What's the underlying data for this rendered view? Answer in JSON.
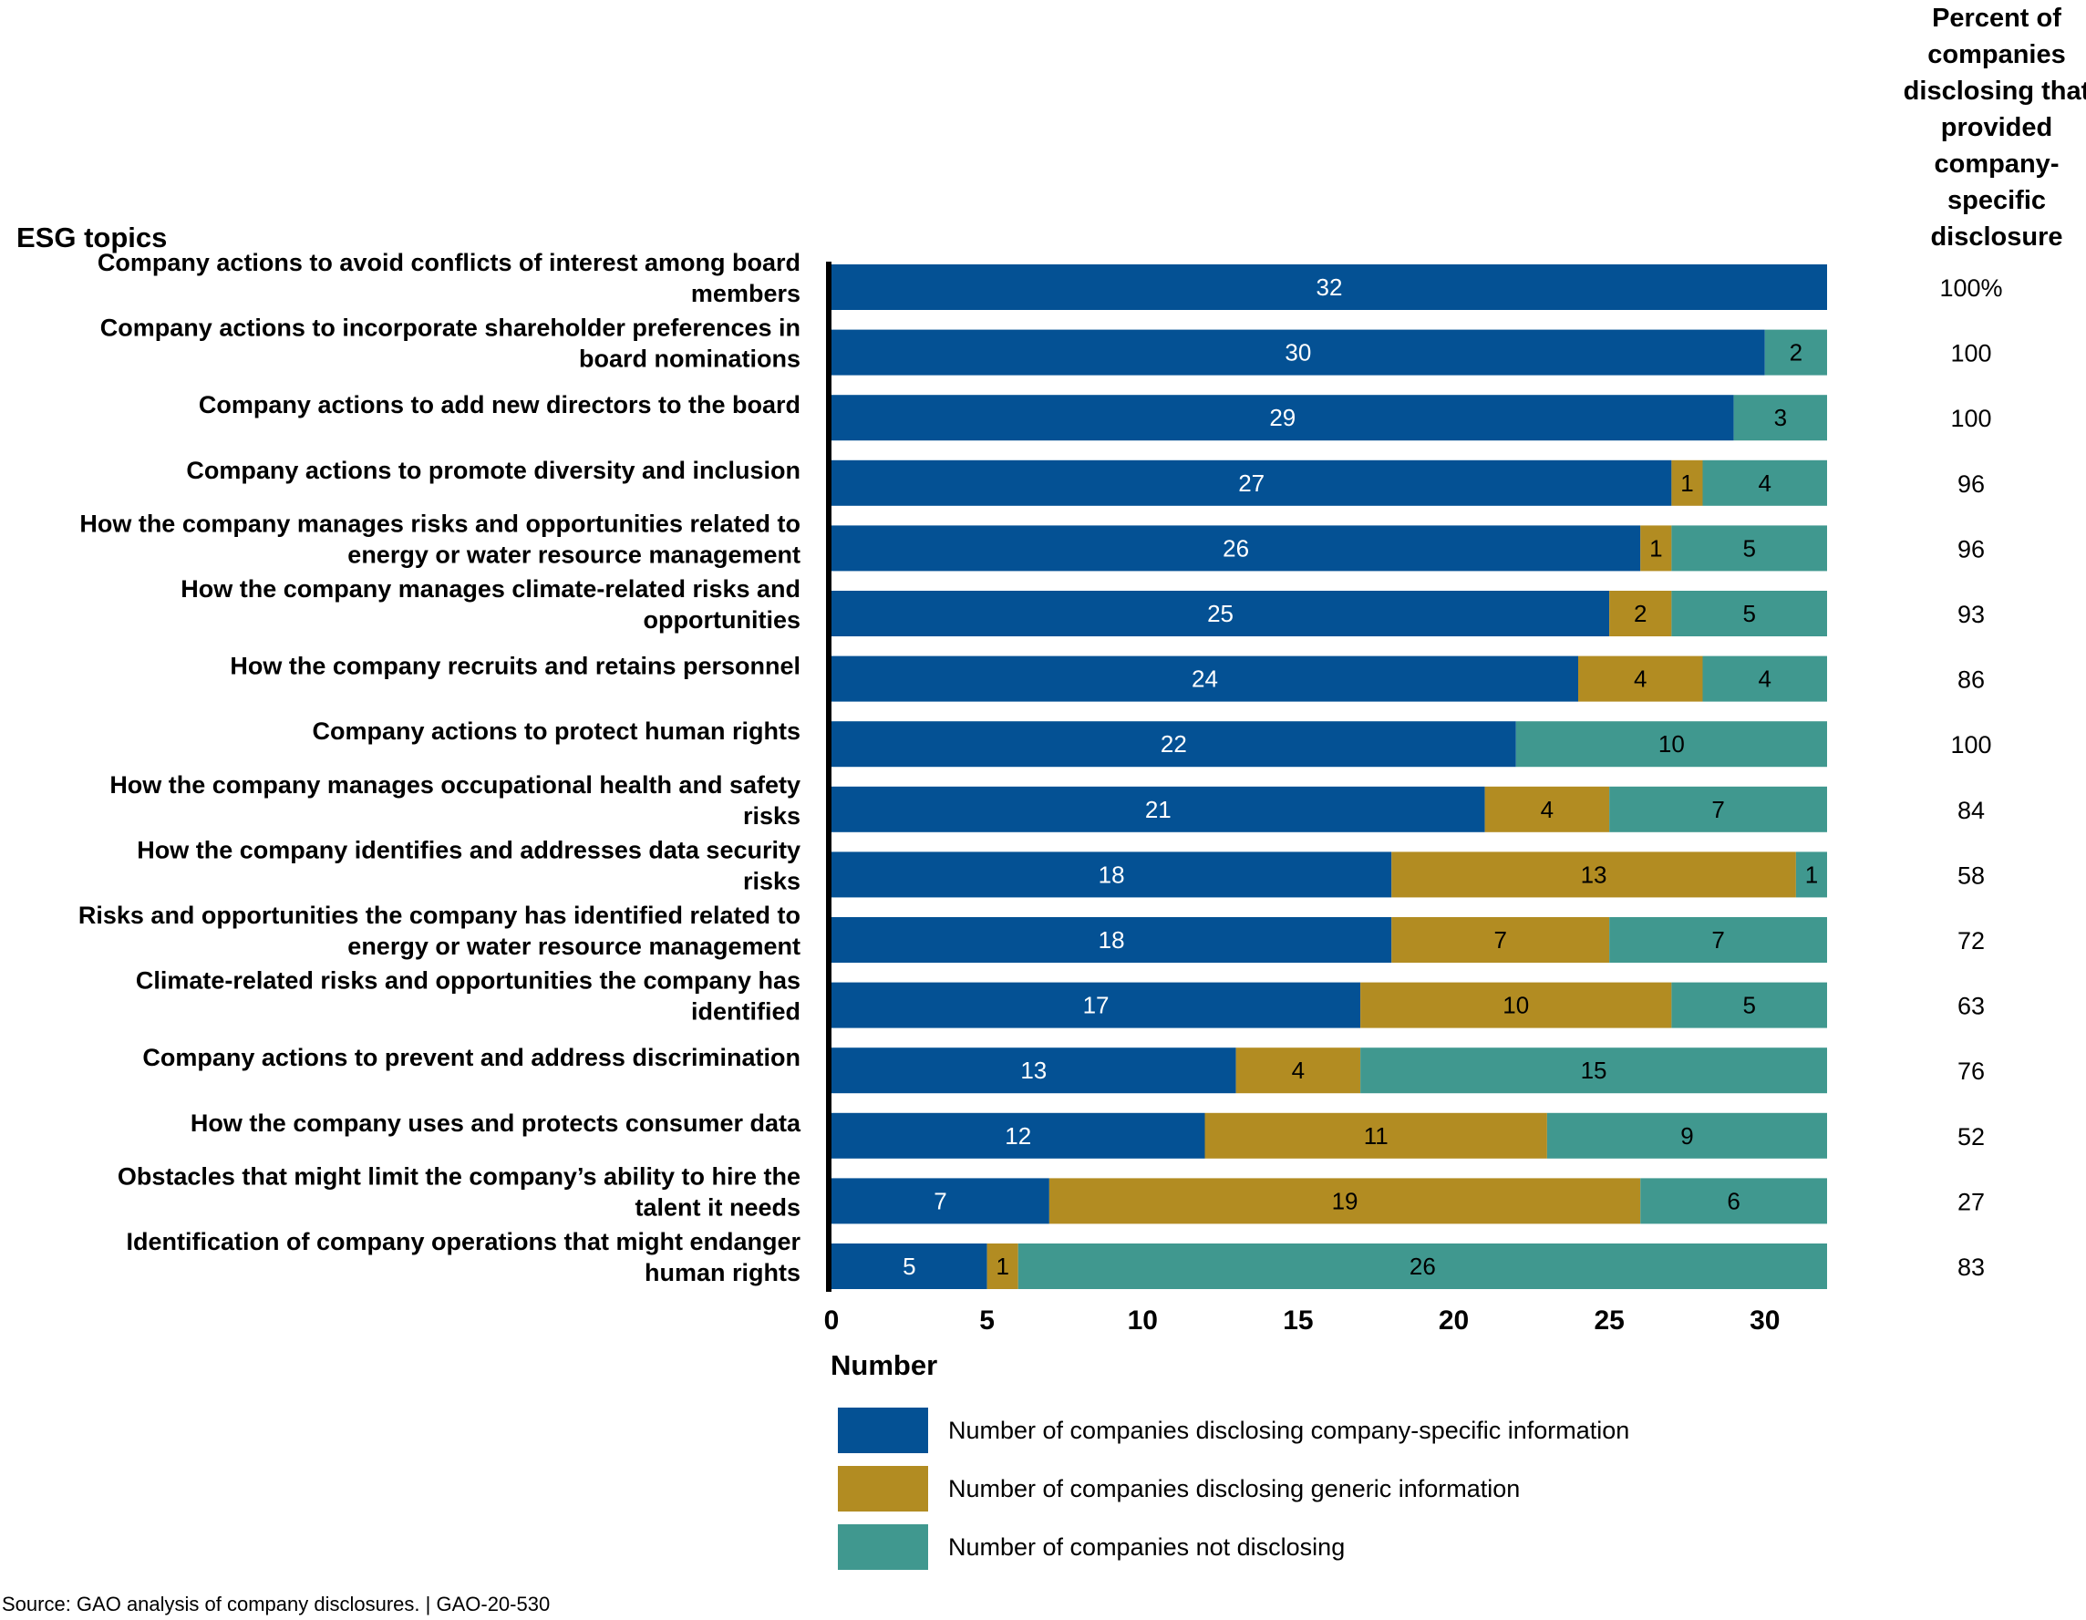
{
  "header": {
    "pct_title_lines": [
      "Percent of",
      "companies",
      "disclosing that",
      "provided",
      "company-",
      "specific",
      "disclosure"
    ]
  },
  "yaxis_title": "ESG topics",
  "xaxis_title": "Number",
  "source": "Source: GAO analysis of company disclosures.  |  GAO-20-530",
  "colors": {
    "specific": "#045194",
    "generic": "#b28c22",
    "not": "#40988f",
    "axis": "#000000"
  },
  "legend": [
    {
      "label": "Number of companies disclosing company-specific information",
      "color": "#045194"
    },
    {
      "label": "Number of companies disclosing generic information",
      "color": "#b28c22"
    },
    {
      "label": "Number of companies not disclosing",
      "color": "#40988f"
    }
  ],
  "chart_data": {
    "type": "bar",
    "orientation": "horizontal",
    "stacked": true,
    "xlabel": "Number",
    "ylabel": "ESG topics",
    "xlim": [
      0,
      32
    ],
    "xticks": [
      0,
      5,
      10,
      15,
      20,
      25,
      30
    ],
    "categories": [
      [
        "Company actions to avoid conflicts of interest among board",
        "members"
      ],
      [
        "Company actions to incorporate shareholder preferences in",
        "board nominations"
      ],
      [
        "Company actions to add new directors to the board"
      ],
      [
        "Company actions to promote diversity and inclusion"
      ],
      [
        "How the company manages risks and opportunities related to",
        "energy or water resource management"
      ],
      [
        "How the company manages climate-related risks and",
        "opportunities"
      ],
      [
        "How the company recruits and retains personnel"
      ],
      [
        "Company actions to protect human rights"
      ],
      [
        "How the company manages occupational health and safety",
        "risks"
      ],
      [
        "How the company identifies and addresses data security",
        "risks"
      ],
      [
        "Risks and opportunities the company has identified related to",
        "energy or water resource management"
      ],
      [
        "Climate-related risks and opportunities the company has",
        "identified"
      ],
      [
        "Company actions to prevent and address discrimination"
      ],
      [
        "How the company uses and protects consumer data"
      ],
      [
        "Obstacles that might limit the company’s ability to hire the",
        "talent it needs"
      ],
      [
        "Identification of company operations that might endanger",
        "human rights"
      ]
    ],
    "series": [
      {
        "name": "Number of companies disclosing company-specific information",
        "key": "specific",
        "values": [
          32,
          30,
          29,
          27,
          26,
          25,
          24,
          22,
          21,
          18,
          18,
          17,
          13,
          12,
          7,
          5
        ]
      },
      {
        "name": "Number of companies disclosing generic information",
        "key": "generic",
        "values": [
          0,
          0,
          0,
          1,
          1,
          2,
          4,
          0,
          4,
          13,
          7,
          10,
          4,
          11,
          19,
          1
        ]
      },
      {
        "name": "Number of companies not disclosing",
        "key": "not",
        "values": [
          0,
          2,
          3,
          4,
          5,
          5,
          4,
          10,
          7,
          1,
          7,
          5,
          15,
          9,
          6,
          26
        ]
      }
    ],
    "percent_column": [
      "100%",
      "100",
      "100",
      "96",
      "96",
      "93",
      "86",
      "100",
      "84",
      "58",
      "72",
      "63",
      "76",
      "52",
      "27",
      "83"
    ]
  }
}
